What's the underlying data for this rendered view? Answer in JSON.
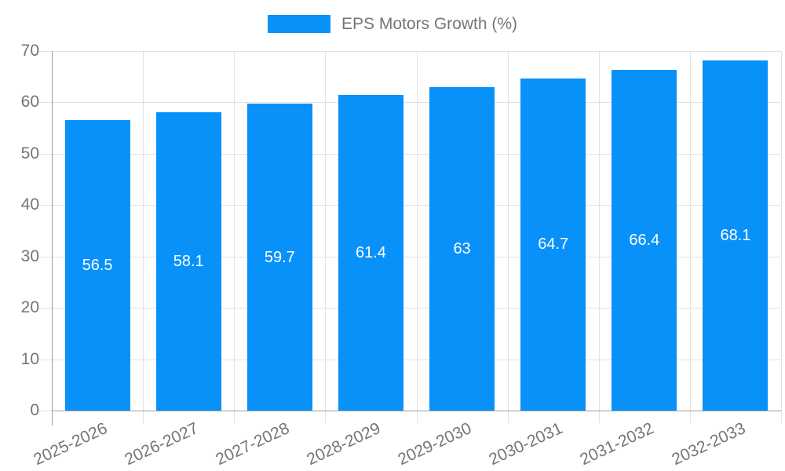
{
  "legend": {
    "label": "EPS Motors Growth (%)"
  },
  "colors": {
    "bar": "#0991fa",
    "grid": "#e2e2e2",
    "axis": "#9e9e9e",
    "muted_text": "#757575",
    "value_label_text": "#ffffff",
    "background": "#ffffff"
  },
  "chart_data": {
    "type": "bar",
    "title": "EPS Motors Growth (%)",
    "categories": [
      "2025-2026",
      "2026-2027",
      "2027-2028",
      "2028-2029",
      "2029-2030",
      "2030-2031",
      "2031-2032",
      "2032-2033"
    ],
    "values": [
      56.5,
      58.1,
      59.7,
      61.4,
      63,
      64.7,
      66.4,
      68.1
    ],
    "series_name": "EPS Motors Growth (%)",
    "xlabel": "",
    "ylabel": "",
    "ylim": [
      0,
      70
    ],
    "yticks": [
      0,
      10,
      20,
      30,
      40,
      50,
      60,
      70
    ],
    "grid": true,
    "legend_position": "top",
    "value_label_position": "inside-center",
    "x_label_rotation_deg": -25
  }
}
